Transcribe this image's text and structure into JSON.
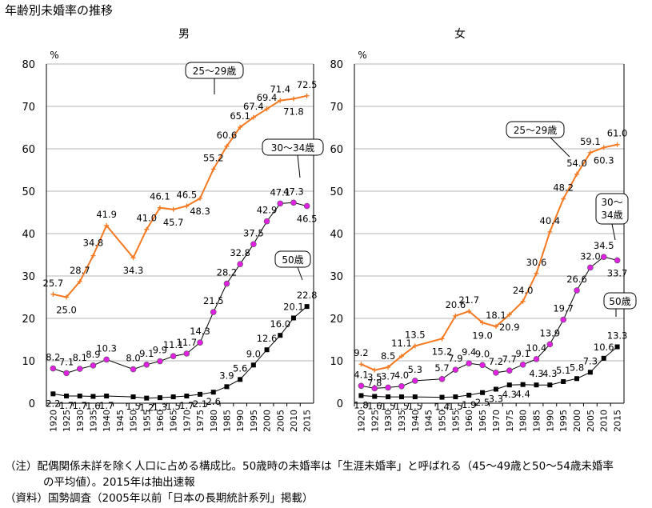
{
  "title": "年齢別未婚率の推移",
  "notes": {
    "line1": "（注）配偶関係未詳を除く人口に占める構成比。50歳時の未婚率は「生涯未婚率」と呼ばれる（45～49歳と50～54歳未婚率",
    "line2": "の平均値）。2015年は抽出速報",
    "line3": "（資料）国勢調査（2005年以前「日本の長期統計系列」掲載）"
  },
  "chart_data": [
    {
      "type": "line",
      "title": "男",
      "ylabel": "%",
      "ylim": [
        0,
        80
      ],
      "yticks": [
        0,
        10,
        20,
        30,
        40,
        50,
        60,
        70,
        80
      ],
      "categories": [
        "1920",
        "1925",
        "1930",
        "1935",
        "1940",
        "1945",
        "1950",
        "1955",
        "1960",
        "1965",
        "1970",
        "1975",
        "1980",
        "1985",
        "1990",
        "1995",
        "2000",
        "2005",
        "2010",
        "2015"
      ],
      "series": [
        {
          "name": "25～29歳",
          "color": "#f47920",
          "marker": "plus",
          "values": [
            25.7,
            25.0,
            28.7,
            34.8,
            41.9,
            null,
            34.3,
            41.0,
            46.1,
            45.7,
            46.5,
            48.3,
            55.2,
            60.6,
            65.1,
            67.4,
            69.4,
            71.4,
            71.8,
            72.5
          ],
          "labels": [
            "25.7",
            "25.0",
            "28.7",
            "34.8",
            "41.9",
            "",
            "34.3",
            "41.0",
            "46.1",
            "45.7",
            "46.5",
            "48.3",
            "55.2",
            "60.6",
            "65.1",
            "67.4",
            "69.4",
            "71.4",
            "71.8",
            "72.5"
          ]
        },
        {
          "name": "30～34歳",
          "color": "#000000",
          "markerColor": "#e020e0",
          "marker": "circle",
          "values": [
            8.2,
            7.1,
            8.1,
            8.9,
            10.3,
            null,
            8.0,
            9.1,
            9.9,
            11.1,
            11.7,
            14.3,
            21.5,
            28.2,
            32.8,
            37.5,
            42.9,
            47.1,
            47.3,
            46.5
          ],
          "labels": [
            "8.2",
            "7.1",
            "8.1",
            "8.9",
            "10.3",
            "",
            "8.0",
            "9.1",
            "9.9",
            "11.1",
            "11.7",
            "14.3",
            "21.5",
            "28.2",
            "32.8",
            "37.5",
            "42.9",
            "47.1",
            "47.3",
            "46.5"
          ]
        },
        {
          "name": "50歳",
          "color": "#000000",
          "marker": "square",
          "values": [
            2.2,
            1.7,
            1.7,
            1.6,
            1.7,
            null,
            1.5,
            1.2,
            1.3,
            1.5,
            1.7,
            2.1,
            2.6,
            3.9,
            5.6,
            9.0,
            12.6,
            16.0,
            20.1,
            22.8
          ],
          "labels": [
            "2.2",
            "1.7",
            "1.7",
            "1.6",
            "1.7",
            "",
            "1.5",
            "1.2",
            "1.3",
            "1.5",
            "1.7",
            "2.1",
            "2.6",
            "3.9",
            "5.6",
            "9.0",
            "12.6",
            "16.0",
            "20.1",
            "22.8"
          ]
        }
      ]
    },
    {
      "type": "line",
      "title": "女",
      "ylabel": "%",
      "ylim": [
        0,
        80
      ],
      "yticks": [
        0,
        10,
        20,
        30,
        40,
        50,
        60,
        70,
        80
      ],
      "categories": [
        "1920",
        "1925",
        "1930",
        "1935",
        "1940",
        "1945",
        "1950",
        "1955",
        "1960",
        "1965",
        "1970",
        "1975",
        "1980",
        "1985",
        "1990",
        "1995",
        "2000",
        "2005",
        "2010",
        "2015"
      ],
      "series": [
        {
          "name": "25～29歳",
          "color": "#f47920",
          "marker": "plus",
          "values": [
            9.2,
            7.8,
            8.5,
            11.1,
            13.5,
            null,
            15.2,
            20.6,
            21.7,
            19.0,
            18.1,
            20.9,
            24.0,
            30.6,
            40.4,
            48.2,
            54.0,
            59.1,
            60.3,
            61.0
          ],
          "labels": [
            "9.2",
            "7.8",
            "8.5",
            "11.1",
            "13.5",
            "",
            "15.2",
            "20.6",
            "21.7",
            "19.0",
            "18.1",
            "20.9",
            "24.0",
            "30.6",
            "40.4",
            "48.2",
            "54.0",
            "59.1",
            "60.3",
            "61.0"
          ]
        },
        {
          "name": "30～34歳",
          "color": "#000000",
          "markerColor": "#e020e0",
          "marker": "circle",
          "values": [
            4.1,
            3.5,
            3.7,
            4.0,
            5.3,
            null,
            5.7,
            7.9,
            9.4,
            9.0,
            7.2,
            7.7,
            9.1,
            10.4,
            13.9,
            19.7,
            26.6,
            32.0,
            34.5,
            33.7
          ],
          "labels": [
            "4.1",
            "3.5",
            "3.7",
            "4.0",
            "5.3",
            "",
            "5.7",
            "7.9",
            "9.4",
            "9.0",
            "7.2",
            "7.7",
            "9.1",
            "10.4",
            "13.9",
            "19.7",
            "26.6",
            "32.0",
            "34.5",
            "33.7"
          ]
        },
        {
          "name": "50歳",
          "color": "#000000",
          "marker": "square",
          "values": [
            1.8,
            1.6,
            1.5,
            1.5,
            1.5,
            null,
            1.4,
            1.5,
            1.9,
            2.5,
            3.3,
            4.3,
            4.4,
            4.3,
            4.3,
            5.1,
            5.8,
            7.3,
            10.6,
            13.3
          ],
          "labels": [
            "1.8",
            "1.6",
            "1.5",
            "1.5",
            "1.5",
            "",
            "1.4",
            "1.5",
            "1.9",
            "2.5",
            "3.3",
            "4.3",
            "4.4",
            "4.3",
            "4.3",
            "5.1",
            "5.8",
            "7.3",
            "10.6",
            "13.3"
          ]
        }
      ]
    }
  ],
  "callouts": [
    {
      "panel": 0,
      "text": "25～29歳"
    },
    {
      "panel": 0,
      "text": "30～34歳"
    },
    {
      "panel": 0,
      "text": "50歳"
    },
    {
      "panel": 1,
      "text": "25～29歳"
    },
    {
      "panel": 1,
      "text": "30～\n34歳"
    },
    {
      "panel": 1,
      "text": "50歳"
    }
  ]
}
